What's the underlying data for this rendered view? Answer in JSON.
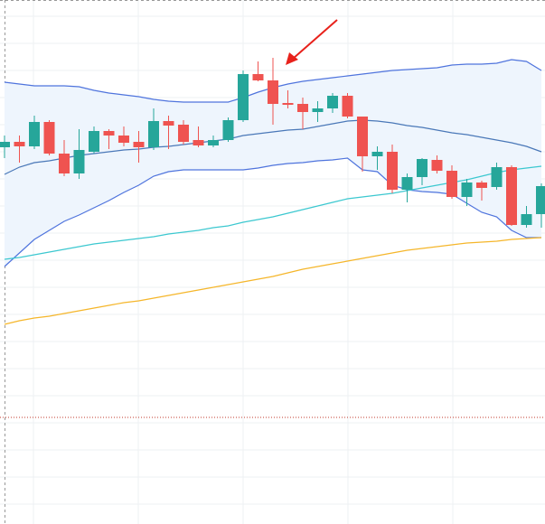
{
  "chart_data": {
    "type": "candlestick",
    "ylim": [
      0,
      580
    ],
    "band_fill": "#eef5fd",
    "candles": {
      "up_color": "#26a69a",
      "down_color": "#ef5350",
      "open": [
        417,
        423,
        418,
        445,
        410,
        388,
        412,
        435,
        430,
        423,
        417,
        446,
        442,
        425,
        419,
        425,
        447,
        498,
        491,
        466,
        465,
        456,
        460,
        474,
        451,
        407,
        412,
        370,
        384,
        403,
        391,
        362,
        378,
        373,
        395,
        331,
        343
      ],
      "high": [
        430,
        430,
        452,
        447,
        425,
        437,
        440,
        437,
        440,
        435,
        460,
        452,
        447,
        440,
        430,
        450,
        502,
        512,
        516,
        480,
        472,
        468,
        477,
        477,
        451,
        418,
        420,
        388,
        405,
        408,
        397,
        382,
        380,
        400,
        397,
        352,
        377
      ],
      "low": [
        405,
        400,
        415,
        408,
        385,
        382,
        410,
        415,
        418,
        400,
        414,
        415,
        420,
        417,
        417,
        423,
        445,
        490,
        442,
        460,
        437,
        445,
        455,
        449,
        390,
        392,
        366,
        356,
        375,
        388,
        360,
        352,
        358,
        370,
        330,
        328,
        328
      ],
      "close": [
        423,
        418,
        445,
        410,
        388,
        414,
        435,
        430,
        422,
        417,
        446,
        441,
        423,
        419,
        425,
        447,
        498,
        491,
        465,
        464,
        456,
        460,
        474,
        451,
        407,
        412,
        370,
        384,
        404,
        391,
        362,
        378,
        372,
        395,
        331,
        343,
        374
      ]
    },
    "series": [
      {
        "color": "#4f74dd",
        "values": [
          489,
          487,
          485,
          485,
          485,
          484,
          480,
          477,
          475,
          473,
          470,
          468,
          467,
          467,
          467,
          467,
          472,
          478,
          483,
          487,
          490,
          492,
          494,
          496,
          498,
          500,
          502,
          503,
          504,
          505,
          508,
          509,
          509,
          510,
          514,
          512,
          502
        ]
      },
      {
        "color": "#4a78b8",
        "values": [
          387,
          395,
          400,
          402,
          405,
          408,
          410,
          412,
          414,
          415,
          417,
          418,
          420,
          422,
          424,
          426,
          430,
          432,
          434,
          436,
          437,
          440,
          443,
          446,
          447,
          446,
          444,
          441,
          439,
          436,
          433,
          431,
          428,
          425,
          422,
          418,
          412
        ]
      },
      {
        "color": "#4f74dd",
        "values": [
          285,
          300,
          315,
          325,
          335,
          342,
          350,
          358,
          367,
          375,
          385,
          390,
          392,
          392,
          392,
          392,
          392,
          394,
          397,
          399,
          400,
          402,
          403,
          405,
          392,
          390,
          375,
          370,
          368,
          367,
          365,
          355,
          345,
          340,
          325,
          317,
          317
        ]
      },
      {
        "color": "#3cc8d0",
        "values": [
          293,
          295,
          298,
          301,
          304,
          307,
          310,
          312,
          314,
          316,
          318,
          321,
          323,
          325,
          328,
          330,
          334,
          337,
          340,
          344,
          348,
          352,
          356,
          360,
          362,
          364,
          366,
          369,
          372,
          375,
          378,
          381,
          385,
          389,
          392,
          394,
          396
        ]
      },
      {
        "color": "#f5b62a",
        "values": [
          221,
          225,
          228,
          230,
          233,
          236,
          239,
          242,
          245,
          247,
          250,
          253,
          256,
          259,
          262,
          265,
          268,
          271,
          274,
          278,
          282,
          285,
          288,
          291,
          294,
          297,
          300,
          303,
          305,
          307,
          309,
          311,
          312,
          313,
          315,
          316,
          317
        ]
      }
    ],
    "hline": {
      "value": 118,
      "color": "#c0392b"
    }
  }
}
